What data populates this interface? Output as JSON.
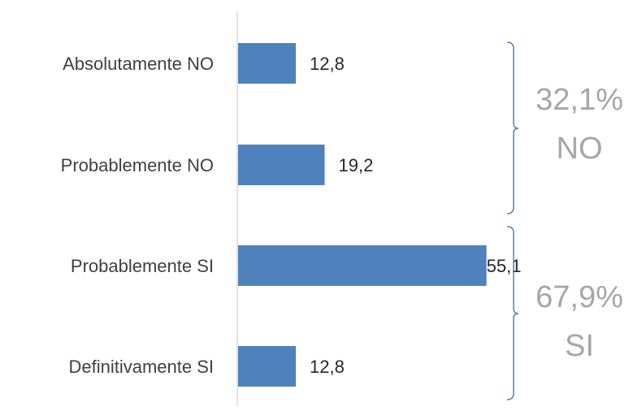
{
  "chart_data": {
    "type": "bar",
    "orientation": "horizontal",
    "categories": [
      "Absolutamente NO",
      "Probablemente NO",
      "Probablemente SI",
      "Definitivamente SI"
    ],
    "values": [
      12.8,
      19.2,
      55.1,
      12.8
    ],
    "value_labels": [
      "12,8",
      "19,2",
      "55,1",
      "12,8"
    ],
    "xlim": [
      0,
      64
    ],
    "grid": false,
    "legend": "none",
    "bar_color": "#4f81bd",
    "groups": [
      {
        "line1": "32,1%",
        "line2": "NO",
        "from": 0,
        "to": 1
      },
      {
        "line1": "67,9%",
        "line2": "SI",
        "from": 2,
        "to": 3
      }
    ]
  },
  "colors": {
    "bar": "#4f81bd",
    "axis": "#d9d9d9",
    "bracket": "#4f81bd",
    "group_text": "#a6a6a6"
  }
}
